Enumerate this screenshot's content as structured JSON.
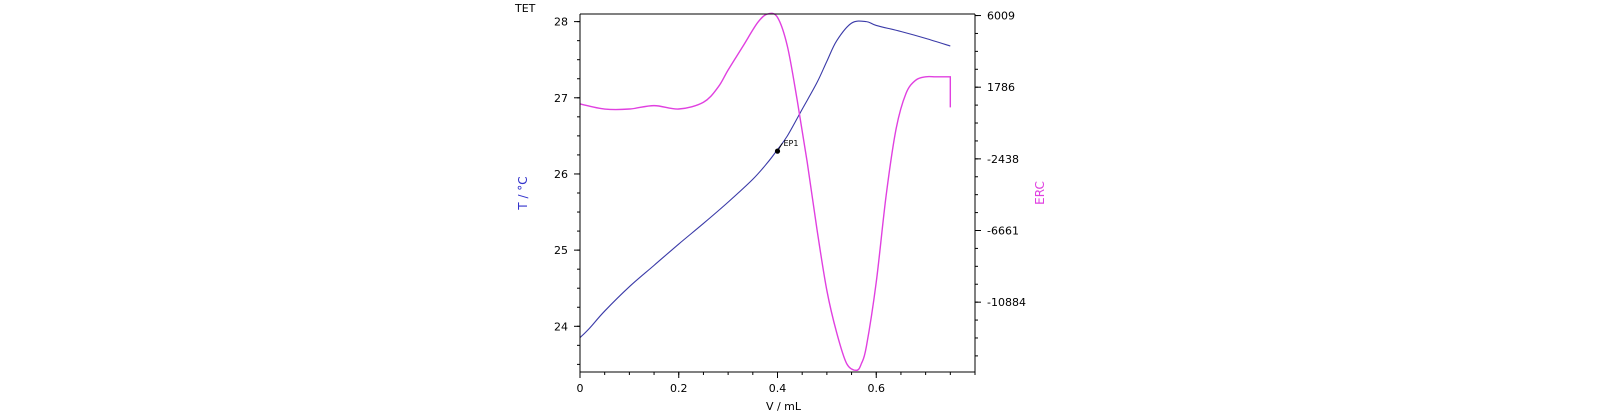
{
  "chart_data": {
    "type": "line",
    "title": "TET",
    "xlabel": "V / mL",
    "ylabel_left": "T / °C",
    "ylabel_right": "ERC",
    "xlim": [
      0,
      0.8
    ],
    "ylim_left": [
      23.4,
      28.1
    ],
    "ylim_right": [
      -15000,
      6100
    ],
    "x_ticks": [
      0,
      0.2,
      0.4,
      0.6
    ],
    "x_tick_labels": [
      "0",
      "0.2",
      "0.4",
      "0.6"
    ],
    "y_left_ticks": [
      24,
      25,
      26,
      27,
      28
    ],
    "y_left_tick_labels": [
      "24",
      "25",
      "26",
      "27",
      "28"
    ],
    "y_right_ticks": [
      6009,
      1786,
      -2438,
      -6661,
      -10884
    ],
    "y_right_tick_labels": [
      "6009",
      "1786",
      "-2438",
      "-6661",
      "-10884"
    ],
    "grid": false,
    "colors": {
      "temperature": "#3a3aa8",
      "erc": "#e040e0",
      "axis": "#000000",
      "left_label": "#3333cc",
      "right_label": "#e040e0"
    },
    "series": [
      {
        "name": "T",
        "axis": "left",
        "x": [
          0.0,
          0.02,
          0.05,
          0.1,
          0.15,
          0.2,
          0.25,
          0.3,
          0.35,
          0.38,
          0.4,
          0.42,
          0.45,
          0.48,
          0.5,
          0.52,
          0.55,
          0.58,
          0.6,
          0.65,
          0.7,
          0.75
        ],
        "y": [
          23.85,
          23.98,
          24.2,
          24.52,
          24.8,
          25.08,
          25.35,
          25.63,
          25.93,
          26.15,
          26.32,
          26.5,
          26.85,
          27.2,
          27.48,
          27.75,
          27.98,
          28.0,
          27.95,
          27.87,
          27.78,
          27.68
        ]
      },
      {
        "name": "ERC",
        "axis": "right",
        "x": [
          0.0,
          0.05,
          0.1,
          0.15,
          0.2,
          0.25,
          0.28,
          0.3,
          0.33,
          0.36,
          0.38,
          0.4,
          0.42,
          0.44,
          0.46,
          0.48,
          0.5,
          0.52,
          0.54,
          0.56,
          0.57,
          0.58,
          0.6,
          0.62,
          0.64,
          0.66,
          0.68,
          0.7,
          0.72,
          0.74,
          0.75,
          0.75,
          0.75
        ],
        "y": [
          800,
          500,
          500,
          700,
          500,
          900,
          1800,
          2800,
          4200,
          5600,
          6100,
          5900,
          4200,
          1000,
          -2600,
          -6600,
          -10200,
          -12700,
          -14500,
          -14900,
          -14500,
          -13500,
          -9700,
          -4600,
          -700,
          1400,
          2200,
          2400,
          2400,
          2400,
          2400,
          1800,
          600
        ]
      }
    ],
    "annotations": [
      {
        "text": "EP1",
        "x": 0.4,
        "y": 26.3,
        "axis": "left"
      }
    ]
  }
}
